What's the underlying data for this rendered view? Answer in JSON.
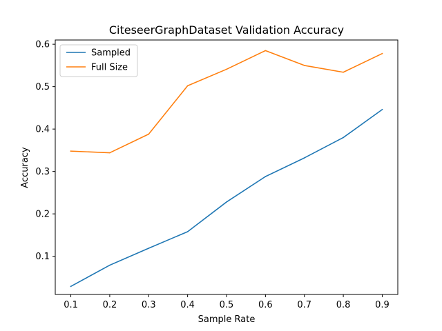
{
  "chart_data": {
    "type": "line",
    "title": "CiteseerGraphDataset Validation Accuracy",
    "xlabel": "Sample Rate",
    "ylabel": "Accuracy",
    "x": [
      0.1,
      0.2,
      0.3,
      0.4,
      0.5,
      0.6,
      0.7,
      0.8,
      0.9
    ],
    "x_ticks": [
      "0.1",
      "0.2",
      "0.3",
      "0.4",
      "0.5",
      "0.6",
      "0.7",
      "0.8",
      "0.9"
    ],
    "y_ticks": [
      "0.1",
      "0.2",
      "0.3",
      "0.4",
      "0.5",
      "0.6"
    ],
    "y_tick_values": [
      0.1,
      0.2,
      0.3,
      0.4,
      0.5,
      0.6
    ],
    "xlim": [
      0.06,
      0.94
    ],
    "ylim": [
      0.01,
      0.61
    ],
    "grid": false,
    "legend_position": "top-left",
    "series": [
      {
        "name": "Sampled",
        "color": "#1f77b4",
        "values": [
          0.029,
          0.079,
          0.119,
          0.158,
          0.228,
          0.288,
          0.332,
          0.38,
          0.446
        ]
      },
      {
        "name": "Full Size",
        "color": "#ff7f0e",
        "values": [
          0.348,
          0.344,
          0.388,
          0.502,
          0.541,
          0.585,
          0.55,
          0.534,
          0.578
        ]
      }
    ]
  }
}
